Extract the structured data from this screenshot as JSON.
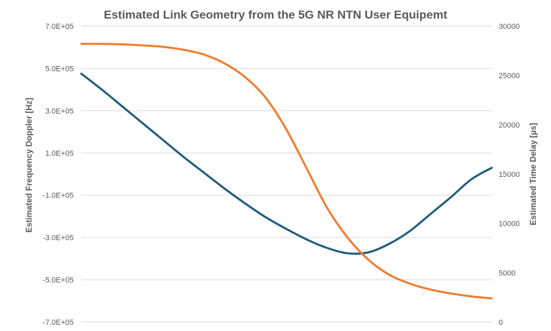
{
  "chart_data": {
    "type": "line",
    "title": "Estimated Link Geometry from the 5G NR NTN User Equipemt",
    "ylabel_left": "Estimated Frequency Doppler [Hz]",
    "ylabel_right": "Estimated Time Delay [µs]",
    "xlabel": "",
    "grid": true,
    "x": [
      0,
      0.05,
      0.1,
      0.15,
      0.2,
      0.25,
      0.3,
      0.35,
      0.4,
      0.45,
      0.5,
      0.55,
      0.6,
      0.65,
      0.7,
      0.75,
      0.8,
      0.85,
      0.9,
      0.95,
      1.0
    ],
    "left_axis": {
      "ylim": [
        -700000,
        700000
      ],
      "ticks": [
        "7.0E+05",
        "5.0E+05",
        "3.0E+05",
        "1.0E+05",
        "-1.0E+05",
        "-3.0E+05",
        "-5.0E+05",
        "-7.0E+05"
      ],
      "tick_values": [
        700000,
        500000,
        300000,
        100000,
        -100000,
        -300000,
        -500000,
        -700000
      ]
    },
    "right_axis": {
      "ylim": [
        0,
        30000
      ],
      "ticks": [
        "30000",
        "25000",
        "20000",
        "15000",
        "10000",
        "5000",
        "0"
      ],
      "tick_values": [
        30000,
        25000,
        20000,
        15000,
        10000,
        5000,
        0
      ]
    },
    "series": [
      {
        "axis": "left",
        "color": "#1f5c7f",
        "values": [
          475000,
          400000,
          320000,
          240000,
          160000,
          80000,
          5000,
          -70000,
          -140000,
          -205000,
          -260000,
          -310000,
          -350000,
          -375000,
          -370000,
          -330000,
          -270000,
          -190000,
          -110000,
          -25000,
          30000
        ]
      },
      {
        "axis": "right",
        "color": "#ed7d31",
        "values": [
          28200,
          28200,
          28150,
          28050,
          27900,
          27600,
          27100,
          26200,
          24800,
          22700,
          19500,
          15500,
          11500,
          8500,
          6300,
          4800,
          3900,
          3300,
          2900,
          2600,
          2400
        ]
      }
    ]
  }
}
